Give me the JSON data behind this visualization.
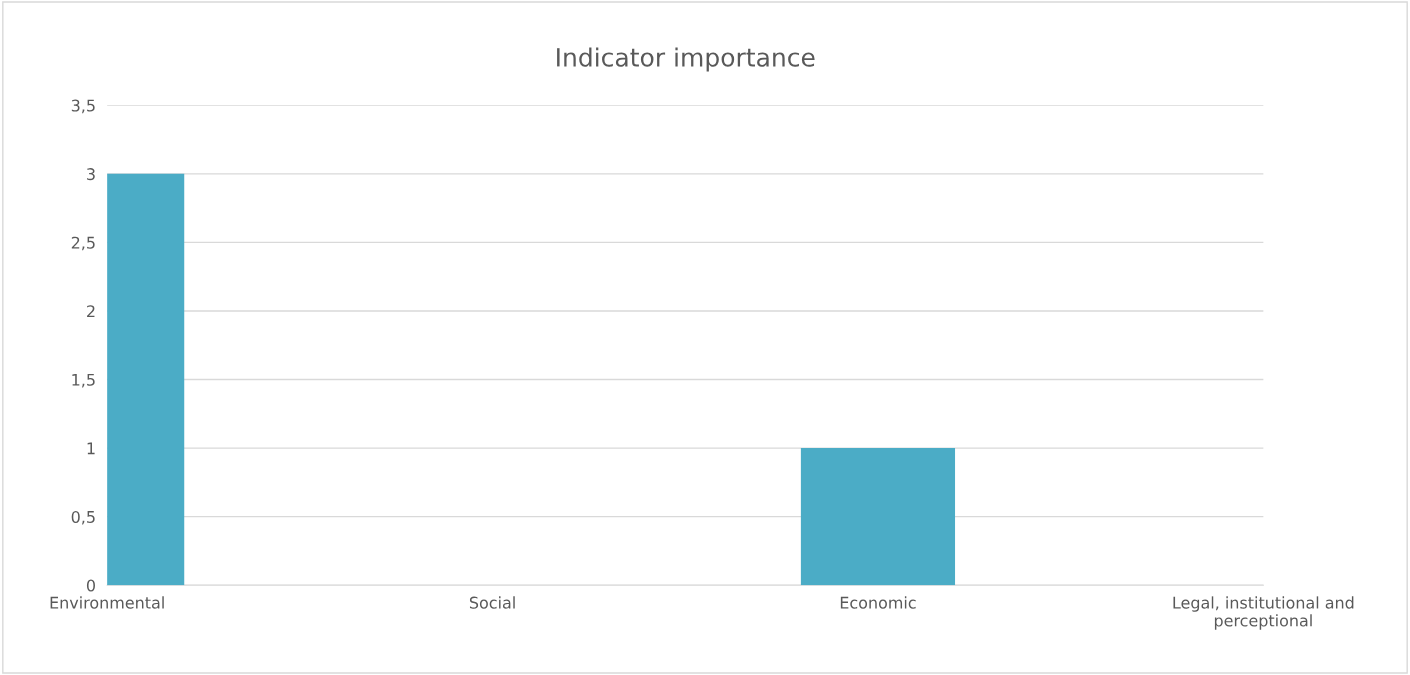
{
  "chart_data": {
    "type": "bar",
    "title": "Indicator importance",
    "categories": [
      "Environmental",
      "Social",
      "Economic",
      "Legal, institutional and\nperceptional"
    ],
    "values": [
      3,
      0,
      1,
      0
    ],
    "color": "#4bacc6",
    "ylim": [
      0,
      3.5
    ],
    "yticks": [
      {
        "value": 0,
        "label": "0"
      },
      {
        "value": 0.5,
        "label": "0,5"
      },
      {
        "value": 1,
        "label": "1"
      },
      {
        "value": 1.5,
        "label": "1,5"
      },
      {
        "value": 2,
        "label": "2"
      },
      {
        "value": 2.5,
        "label": "2,5"
      },
      {
        "value": 3,
        "label": "3"
      },
      {
        "value": 3.5,
        "label": "3,5"
      }
    ],
    "grid": "y",
    "legend": false
  }
}
